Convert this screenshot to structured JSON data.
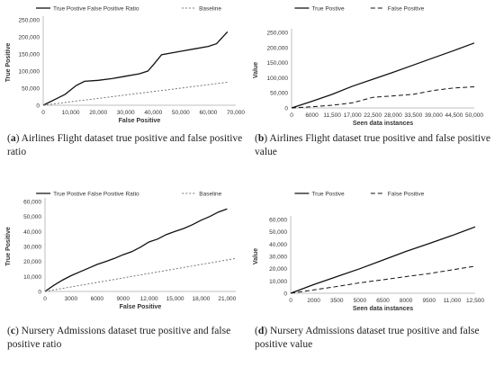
{
  "chart_data": [
    {
      "type": "line",
      "xlabel": "False Positive",
      "ylabel": "True Positive",
      "x_ticks": [
        0,
        10000,
        20000,
        30000,
        40000,
        50000,
        60000,
        70000
      ],
      "x_tick_labels": [
        "0",
        "10,000",
        "20,000",
        "30,000",
        "40,000",
        "50,000",
        "60,000",
        "70,000"
      ],
      "y_ticks": [
        0,
        50000,
        100000,
        150000,
        200000,
        250000
      ],
      "y_tick_labels": [
        "0",
        "50,000",
        "100,000",
        "150,000",
        "200,000",
        "250,000"
      ],
      "xlim": [
        0,
        70000
      ],
      "ylim": [
        0,
        250000
      ],
      "legend_position": "top",
      "series": [
        {
          "name": "True Postive False Positive Ratio",
          "style": "solid",
          "x": [
            0,
            5000,
            8000,
            10000,
            12000,
            15000,
            20000,
            25000,
            30000,
            35000,
            38000,
            40000,
            43000,
            50000,
            55000,
            60000,
            63000,
            67000
          ],
          "y": [
            0,
            20000,
            32000,
            45000,
            58000,
            70000,
            73000,
            78000,
            85000,
            92000,
            100000,
            118000,
            148000,
            158000,
            165000,
            172000,
            180000,
            215000
          ]
        },
        {
          "name": "Baseline",
          "style": "dotted",
          "x": [
            0,
            67000
          ],
          "y": [
            0,
            67000
          ]
        }
      ],
      "caption_label": "a",
      "caption_text": "Airlines Flight dataset true positive and false positive ratio"
    },
    {
      "type": "line",
      "xlabel": "Seen data instances",
      "ylabel": "Value",
      "categories": [
        "0",
        "6000",
        "11,500",
        "17,000",
        "22,500",
        "28,000",
        "33,500",
        "39,000",
        "44,500",
        "50,000"
      ],
      "y_ticks": [
        0,
        50000,
        100000,
        150000,
        200000,
        250000
      ],
      "y_tick_labels": [
        "0",
        "50,000",
        "100,000",
        "150,000",
        "200,000",
        "250,000"
      ],
      "ylim": [
        0,
        250000
      ],
      "legend_position": "top",
      "series": [
        {
          "name": "True Postive",
          "style": "solid",
          "values": [
            0,
            22000,
            45000,
            72000,
            95000,
            118000,
            142000,
            166000,
            190000,
            215000
          ]
        },
        {
          "name": "False Positive",
          "style": "dashed",
          "values": [
            0,
            4000,
            9000,
            17000,
            35000,
            40000,
            45000,
            58000,
            66000,
            70000
          ]
        }
      ],
      "caption_label": "b",
      "caption_text": "Airlines Flight dataset true positive and false positive value"
    },
    {
      "type": "line",
      "xlabel": "False Positive",
      "ylabel": "True Positive",
      "x_ticks": [
        0,
        3000,
        6000,
        9000,
        12000,
        15000,
        18000,
        21000
      ],
      "x_tick_labels": [
        "0",
        "3000",
        "6000",
        "9000",
        "12,000",
        "15,000",
        "18,000",
        "21,000"
      ],
      "y_ticks": [
        0,
        10000,
        20000,
        30000,
        40000,
        50000,
        60000
      ],
      "y_tick_labels": [
        "0",
        "10,000",
        "20,000",
        "30,000",
        "40,000",
        "50,000",
        "60,000"
      ],
      "xlim": [
        0,
        22000
      ],
      "ylim": [
        0,
        60000
      ],
      "legend_position": "top",
      "series": [
        {
          "name": "True Postive False Positive Ratio",
          "style": "solid",
          "x": [
            0,
            1000,
            2000,
            3000,
            4000,
            5000,
            6000,
            7000,
            8000,
            9000,
            10000,
            11000,
            12000,
            13000,
            14000,
            15000,
            16000,
            17000,
            18000,
            19000,
            20000,
            21000
          ],
          "y": [
            0,
            4000,
            7500,
            10500,
            13000,
            15500,
            18000,
            20000,
            22000,
            24500,
            26500,
            29500,
            33000,
            35000,
            38000,
            40000,
            42000,
            44500,
            47500,
            50000,
            53000,
            55000
          ]
        },
        {
          "name": "Baseline",
          "style": "dotted",
          "x": [
            0,
            22000
          ],
          "y": [
            0,
            22000
          ]
        }
      ],
      "caption_label": "c",
      "caption_text": "Nursery Admissions dataset true positive and false positive ratio"
    },
    {
      "type": "line",
      "xlabel": "Seen data instances",
      "ylabel": "Value",
      "categories": [
        "0",
        "2000",
        "3500",
        "5000",
        "6500",
        "8000",
        "9500",
        "11,000",
        "12,500"
      ],
      "y_ticks": [
        0,
        10000,
        20000,
        30000,
        40000,
        50000,
        60000
      ],
      "y_tick_labels": [
        "0",
        "10,000",
        "20,000",
        "30,000",
        "40,000",
        "50,000",
        "60,000"
      ],
      "ylim": [
        0,
        60000
      ],
      "legend_position": "top",
      "series": [
        {
          "name": "True Postive",
          "style": "solid",
          "values": [
            0,
            7000,
            13500,
            20000,
            27000,
            34000,
            40500,
            47000,
            54000
          ]
        },
        {
          "name": "False Positive",
          "style": "dashed",
          "values": [
            0,
            2700,
            5500,
            8500,
            11000,
            13500,
            16000,
            19000,
            22000
          ]
        }
      ],
      "caption_label": "d",
      "caption_text": "Nursery Admissions dataset true positive and false positive value"
    }
  ]
}
